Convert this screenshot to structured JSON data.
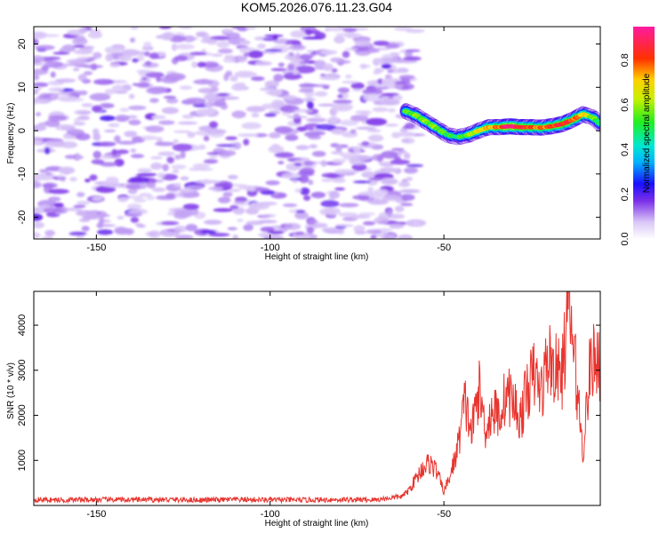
{
  "title": "KOM5.2026.076.11.23.G04",
  "chart_data": [
    {
      "type": "heatmap",
      "title": "KOM5.2026.076.11.23.G04",
      "xlabel": "Height of straight line (km)",
      "ylabel": "Frequency (Hz)",
      "xlim": [
        -168,
        -5
      ],
      "ylim": [
        -25,
        24
      ],
      "xticks": [
        -150,
        -100,
        -50
      ],
      "yticks": [
        -20,
        -10,
        0,
        10,
        20
      ],
      "noise_region_x": [
        -168,
        -58
      ],
      "signal_track": {
        "x": [
          -61,
          -58,
          -55,
          -52,
          -49,
          -46,
          -43,
          -40,
          -37,
          -34,
          -31,
          -28,
          -25,
          -22,
          -19,
          -16,
          -13,
          -10,
          -7,
          -5
        ],
        "freq": [
          4.5,
          3.5,
          2.0,
          0.5,
          -1.0,
          -1.5,
          -1.0,
          0.0,
          0.8,
          0.8,
          1.0,
          0.8,
          0.8,
          0.7,
          1.0,
          1.5,
          2.5,
          3.8,
          3.0,
          1.5
        ],
        "amp": [
          0.55,
          0.6,
          0.6,
          0.6,
          0.55,
          0.5,
          0.6,
          0.7,
          0.75,
          0.8,
          1.0,
          0.9,
          0.85,
          0.8,
          0.85,
          0.9,
          0.85,
          0.75,
          0.6,
          0.5
        ]
      },
      "colorbar": {
        "label": "Normalized spectral amplitude",
        "range": [
          0,
          0.95
        ],
        "ticks": [
          "0.0",
          "0.2",
          "0.4",
          "0.6",
          "0.8"
        ]
      }
    },
    {
      "type": "line",
      "xlabel": "Height of straight line (km)",
      "ylabel": "SNR (10 * v/v)",
      "xlim": [
        -168,
        -5
      ],
      "ylim": [
        0,
        4750
      ],
      "xticks": [
        -150,
        -100,
        -50
      ],
      "yticks": [
        1000,
        2000,
        3000,
        4000
      ],
      "color": "#e8352f",
      "series": [
        {
          "name": "SNR",
          "x": [
            -168,
            -160,
            -150,
            -140,
            -130,
            -120,
            -110,
            -100,
            -90,
            -80,
            -70,
            -62,
            -60,
            -58,
            -56,
            -54,
            -52,
            -50,
            -48,
            -46,
            -44,
            -42,
            -40,
            -38,
            -36,
            -34,
            -32,
            -30,
            -28,
            -26,
            -24,
            -22,
            -20,
            -18,
            -16,
            -14,
            -12,
            -10,
            -8,
            -6,
            -5
          ],
          "values": [
            130,
            120,
            130,
            125,
            130,
            120,
            130,
            125,
            120,
            130,
            125,
            200,
            350,
            600,
            850,
            950,
            750,
            300,
            700,
            1300,
            2300,
            1600,
            2600,
            1700,
            2100,
            2000,
            2500,
            2300,
            1900,
            2600,
            2900,
            2500,
            3300,
            3000,
            2900,
            4500,
            2900,
            1200,
            3000,
            3400,
            3100
          ]
        }
      ]
    }
  ]
}
